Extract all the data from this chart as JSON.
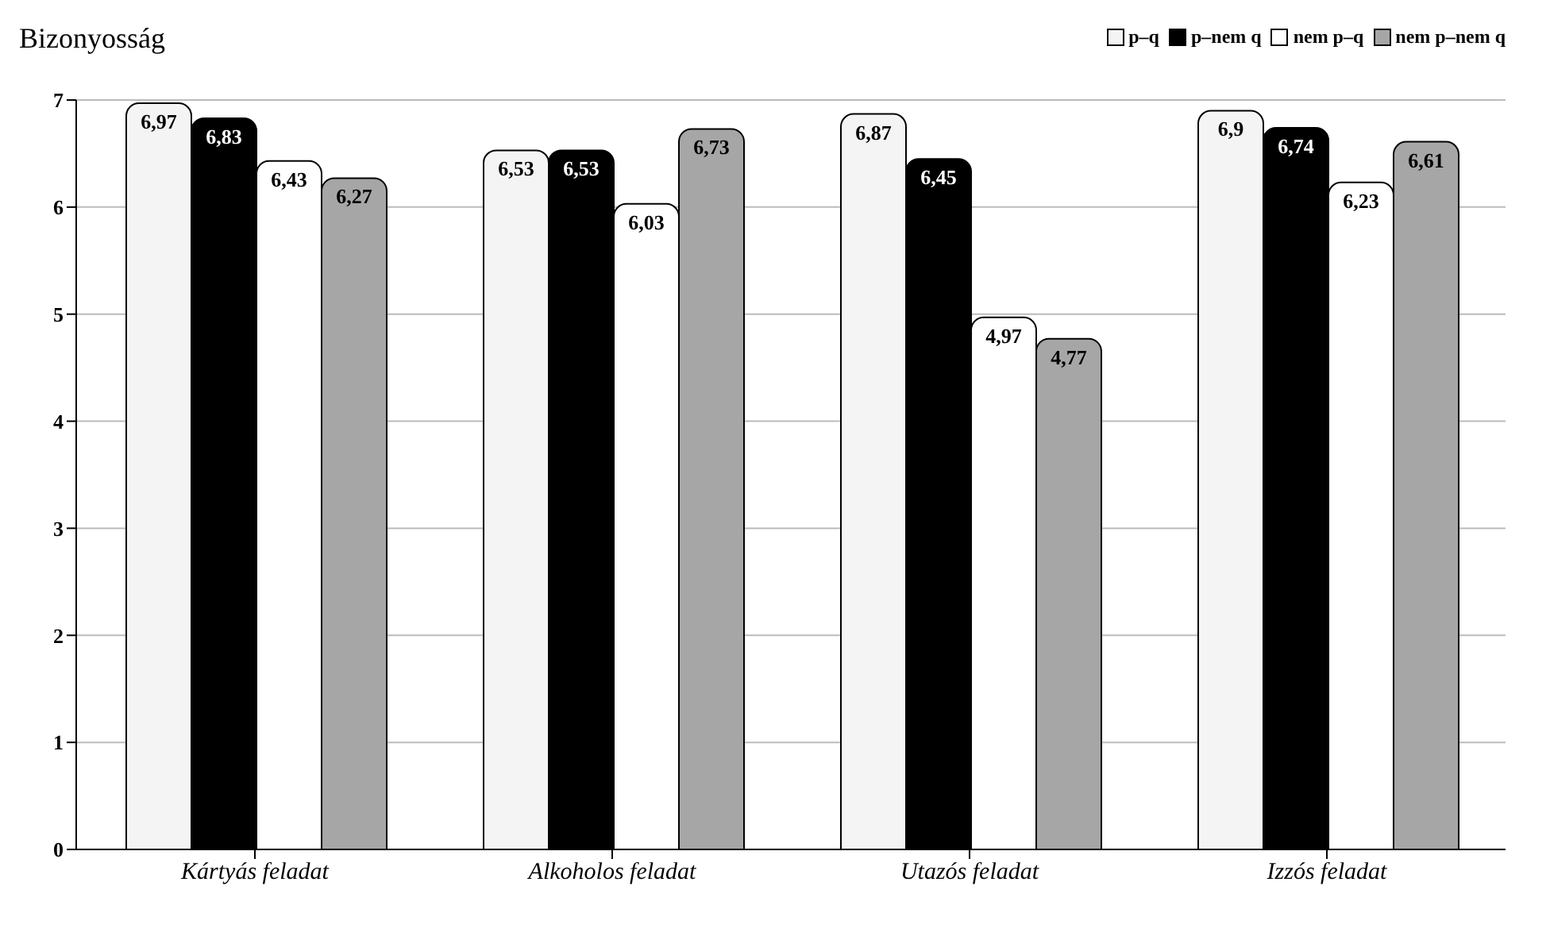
{
  "chart_data": {
    "type": "bar",
    "ylabel": "Bizonyosság",
    "categories": [
      "Kártyás feladat",
      "Alkoholos feladat",
      "Utazós feladat",
      "Izzós feladat"
    ],
    "series": [
      {
        "name": "p–q",
        "color": "#f4f4f4",
        "values": [
          6.97,
          6.53,
          6.87,
          6.9
        ],
        "value_labels": [
          "6,97",
          "6,53",
          "6,87",
          "6,9"
        ]
      },
      {
        "name": "p–nem q",
        "color": "#000000",
        "values": [
          6.83,
          6.53,
          6.45,
          6.74
        ],
        "value_labels": [
          "6,83",
          "6,53",
          "6,45",
          "6,74"
        ]
      },
      {
        "name": "nem p–q",
        "color": "#ffffff",
        "values": [
          6.43,
          6.03,
          4.97,
          6.23
        ],
        "value_labels": [
          "6,43",
          "6,03",
          "4,97",
          "6,23"
        ]
      },
      {
        "name": "nem p–nem q",
        "color": "#a6a6a6",
        "values": [
          6.27,
          6.73,
          4.77,
          6.61
        ],
        "value_labels": [
          "6,27",
          "6,73",
          "4,77",
          "6,61"
        ]
      }
    ],
    "ylim": [
      0,
      7
    ],
    "yticks": [
      0,
      1,
      2,
      3,
      4,
      5,
      6,
      7
    ],
    "grid": "y",
    "legend": "top right"
  }
}
